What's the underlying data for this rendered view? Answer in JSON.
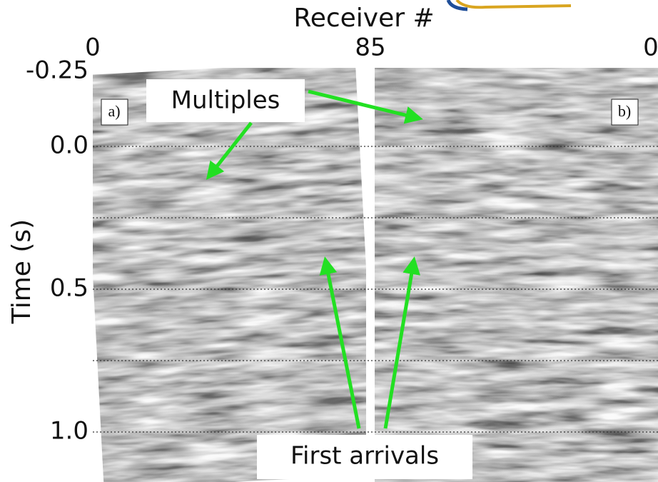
{
  "x_axis": {
    "label": "Receiver #",
    "ticks": [
      "0",
      "85",
      "0"
    ]
  },
  "y_axis": {
    "label": "Time (s)",
    "ticks": [
      "-0.25",
      "0.0",
      "0.5",
      "1.0"
    ]
  },
  "panels": [
    {
      "label": "a)"
    },
    {
      "label": "b)"
    }
  ],
  "annotations": [
    {
      "text": "Multiples"
    },
    {
      "text": "First arrivals"
    }
  ]
}
